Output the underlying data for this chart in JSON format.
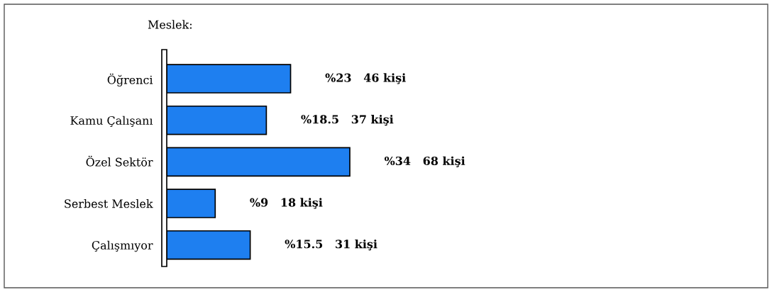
{
  "chart_data": {
    "type": "bar",
    "orientation": "horizontal",
    "title": "Meslek:",
    "categories": [
      "Öğrenci",
      "Kamu Çalışanı",
      "Özel Sektör",
      "Serbest Meslek",
      "Çalışmıyor"
    ],
    "values": [
      46,
      37,
      68,
      18,
      31
    ],
    "value_labels": [
      "%23   46 kişi",
      "%18.5   37 kişi",
      "%34   68 kişi",
      "%9   18 kişi",
      "%15.5   31 kişi"
    ],
    "color": "#1e7ff0",
    "grid": false,
    "legend": false,
    "tick_labels": "y"
  }
}
